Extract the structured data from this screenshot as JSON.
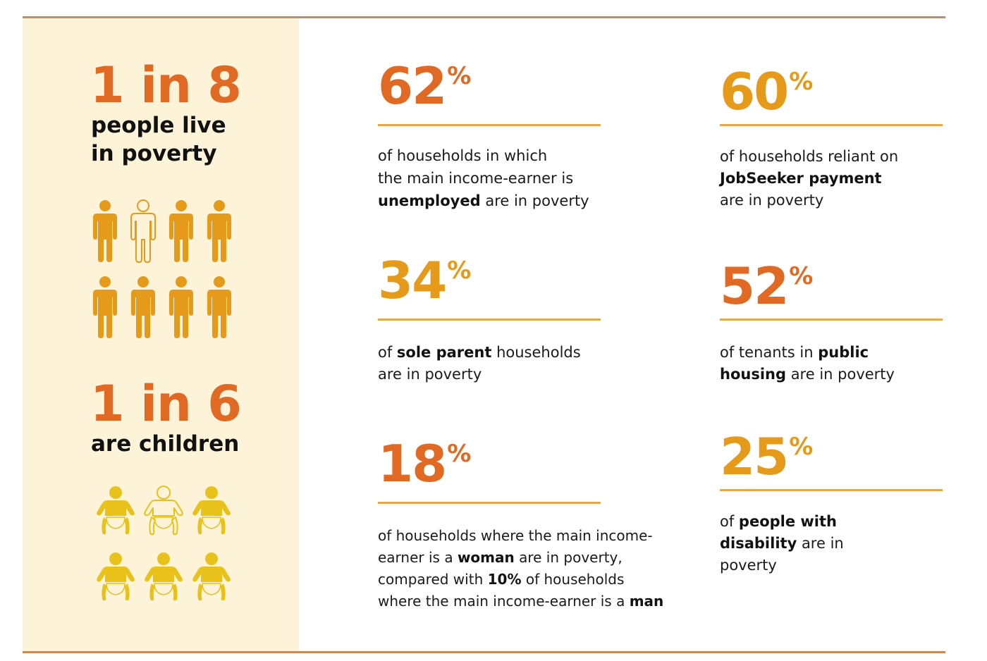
{
  "colors": {
    "orange": "#e06a24",
    "amber": "#e59a1a",
    "adult_icon": "#e59a1a",
    "child_icon": "#e8c21a",
    "panel_bg": "#fcf3d9",
    "frame_rule": "#c98a5a",
    "divider": "#e3a94f"
  },
  "left_panel": {
    "adults": {
      "ratio": "1 in 8",
      "caption_line1": "people live",
      "caption_line2": "in poverty",
      "icons": [
        {
          "icon": "adult-person-icon",
          "filled": true
        },
        {
          "icon": "adult-person-icon",
          "filled": false
        },
        {
          "icon": "adult-person-icon",
          "filled": true
        },
        {
          "icon": "adult-person-icon",
          "filled": true
        },
        {
          "icon": "adult-person-icon",
          "filled": true
        },
        {
          "icon": "adult-person-icon",
          "filled": true
        },
        {
          "icon": "adult-person-icon",
          "filled": true
        },
        {
          "icon": "adult-person-icon",
          "filled": true
        }
      ]
    },
    "children": {
      "ratio": "1 in 6",
      "caption": "are children",
      "icons": [
        {
          "icon": "baby-icon",
          "filled": true
        },
        {
          "icon": "baby-icon",
          "filled": false
        },
        {
          "icon": "baby-icon",
          "filled": true
        },
        {
          "icon": "baby-icon",
          "filled": true
        },
        {
          "icon": "baby-icon",
          "filled": true
        },
        {
          "icon": "baby-icon",
          "filled": true
        }
      ]
    }
  },
  "stats": [
    {
      "value": "62",
      "unit": "%",
      "color": "orange",
      "desc": [
        {
          "text": "of households in which",
          "bold": false,
          "br": true
        },
        {
          "text": "the main income-earner is",
          "bold": false,
          "br": true
        },
        {
          "text": "unemployed",
          "bold": true
        },
        {
          "text": " are in poverty",
          "bold": false
        }
      ]
    },
    {
      "value": "60",
      "unit": "%",
      "color": "amber",
      "desc": [
        {
          "text": "of households reliant on",
          "bold": false,
          "br": true
        },
        {
          "text": "JobSeeker payment",
          "bold": true,
          "br": true
        },
        {
          "text": "are in poverty",
          "bold": false
        }
      ]
    },
    {
      "value": "34",
      "unit": "%",
      "color": "amber",
      "desc": [
        {
          "text": "of ",
          "bold": false
        },
        {
          "text": "sole parent",
          "bold": true
        },
        {
          "text": " households",
          "bold": false,
          "br": true
        },
        {
          "text": "are in poverty",
          "bold": false
        }
      ]
    },
    {
      "value": "52",
      "unit": "%",
      "color": "orange",
      "desc": [
        {
          "text": "of tenants in ",
          "bold": false
        },
        {
          "text": "public",
          "bold": true,
          "br": true
        },
        {
          "text": "housing",
          "bold": true
        },
        {
          "text": " are in poverty",
          "bold": false
        }
      ]
    },
    {
      "value": "18",
      "unit": "%",
      "color": "orange",
      "desc": [
        {
          "text": "of households where the main income-",
          "bold": false,
          "br": true
        },
        {
          "text": "earner is a ",
          "bold": false
        },
        {
          "text": "woman",
          "bold": true
        },
        {
          "text": " are in poverty,",
          "bold": false,
          "br": true
        },
        {
          "text": "compared with ",
          "bold": false
        },
        {
          "text": "10%",
          "bold": true
        },
        {
          "text": " of households",
          "bold": false,
          "br": true
        },
        {
          "text": "where the main income-earner is a ",
          "bold": false
        },
        {
          "text": "man",
          "bold": true
        }
      ]
    },
    {
      "value": "25",
      "unit": "%",
      "color": "amber",
      "desc": [
        {
          "text": "of ",
          "bold": false
        },
        {
          "text": "people with",
          "bold": true,
          "br": true
        },
        {
          "text": "disability",
          "bold": true
        },
        {
          "text": " are in",
          "bold": false,
          "br": true
        },
        {
          "text": "poverty",
          "bold": false
        }
      ]
    }
  ]
}
